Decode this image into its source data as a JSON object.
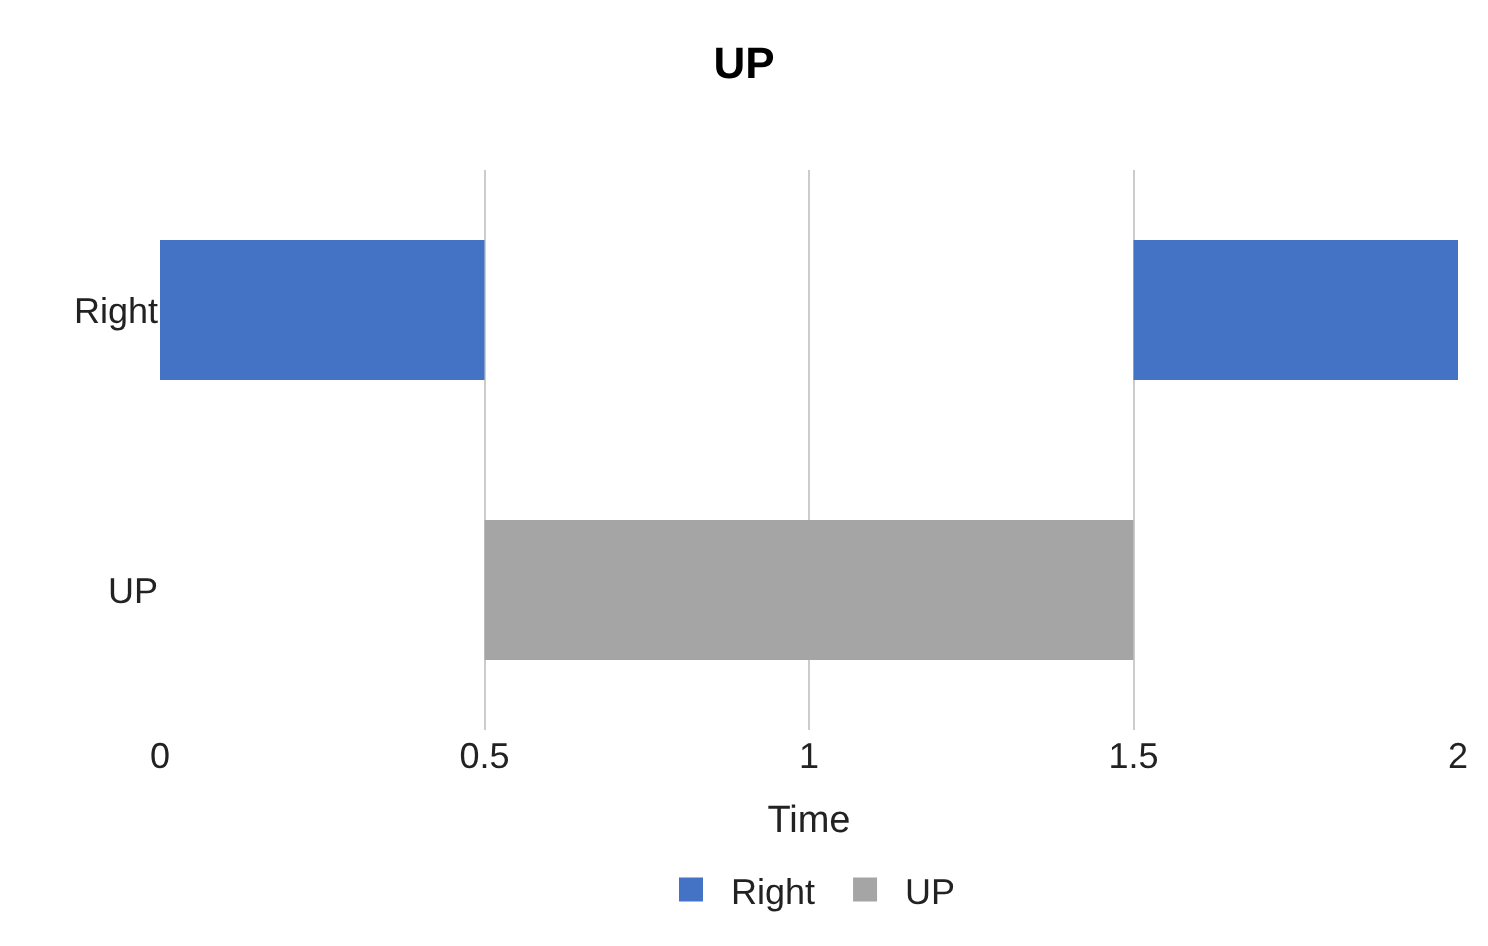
{
  "chart_data": {
    "type": "bar",
    "orientation": "horizontal",
    "title": "UP",
    "xlabel": "Time",
    "categories": [
      "Right",
      "UP"
    ],
    "series": [
      {
        "name": "Right",
        "color": "#4472c4",
        "values": [
          0.5,
          null
        ],
        "base": [
          0,
          null
        ]
      },
      {
        "color": "#4472c4",
        "values": [
          0.5,
          null
        ],
        "base": [
          1.5,
          null
        ]
      },
      {
        "name": "UP",
        "color": "#a5a5a5",
        "values": [
          null,
          1.0
        ],
        "base": [
          null,
          0.5
        ]
      }
    ],
    "xlim": [
      0,
      2
    ],
    "xticks": [
      0,
      0.5,
      1,
      1.5,
      2
    ],
    "grid": "x",
    "legend": "bottom"
  }
}
